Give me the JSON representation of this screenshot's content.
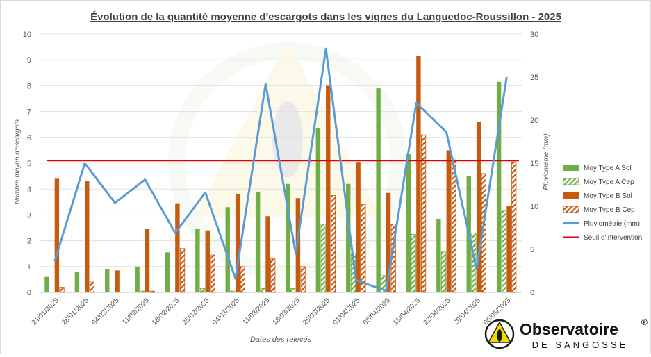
{
  "chart_data": {
    "type": "bar",
    "title": "Évolution de la quantité moyenne d'escargots dans les vignes du Languedoc-Roussillon - 2025",
    "xlabel": "Dates des relevés",
    "ylabel": "Nombre moyen d'escargots",
    "y2label": "Pluviométrie (mm)",
    "ylim": [
      0,
      10
    ],
    "y2lim": [
      0,
      30
    ],
    "yticks": [
      "0",
      "1",
      "2",
      "3",
      "4",
      "5",
      "6",
      "7",
      "8",
      "9",
      "10"
    ],
    "y2ticks": [
      "0",
      "5",
      "10",
      "15",
      "20",
      "25",
      "30"
    ],
    "categories": [
      "21/01/2025",
      "28/01/2025",
      "04/02/2025",
      "11/02/2025",
      "18/02/2025",
      "25/02/2025",
      "04/03/2025",
      "11/03/2025",
      "18/03/2025",
      "25/03/2025",
      "01/04/2025",
      "08/04/2025",
      "15/04/2025",
      "22/04/2025",
      "29/04/2025",
      "06/05/2025"
    ],
    "series": [
      {
        "name": "Moy Type A Sol",
        "kind": "bar",
        "pattern": "solid",
        "color": "#70ad47",
        "values": [
          0.6,
          0.8,
          0.9,
          1.0,
          1.55,
          2.45,
          3.3,
          3.9,
          4.2,
          6.35,
          4.2,
          7.9,
          5.35,
          2.85,
          4.5,
          8.15
        ]
      },
      {
        "name": "Moy Type A Cep",
        "kind": "bar",
        "pattern": "hatched",
        "color": "#70ad47",
        "values": [
          0,
          0,
          0,
          0.05,
          0,
          0.15,
          0.05,
          0.15,
          0.15,
          2.65,
          1.5,
          0.65,
          2.25,
          1.6,
          2.3,
          3.15
        ]
      },
      {
        "name": "Moy Type B Sol",
        "kind": "bar",
        "pattern": "solid",
        "color": "#c55a11",
        "values": [
          4.4,
          4.3,
          0.85,
          2.45,
          3.45,
          2.4,
          3.8,
          2.95,
          3.65,
          8.0,
          5.05,
          3.85,
          9.15,
          5.5,
          6.6,
          3.35
        ]
      },
      {
        "name": "Moy Type B Cep",
        "kind": "bar",
        "pattern": "hatched",
        "color": "#c55a11",
        "values": [
          0.2,
          0.4,
          0,
          0.05,
          1.7,
          1.45,
          1.0,
          1.3,
          1.0,
          3.75,
          3.4,
          2.65,
          6.1,
          5.2,
          4.6,
          5.05
        ]
      },
      {
        "name": "Pluviométrie (mm)",
        "kind": "line",
        "axis": "right",
        "color": "#5b9bd5",
        "values": [
          3.6,
          15.0,
          10.4,
          13.1,
          6.9,
          11.6,
          1.6,
          24.2,
          4.5,
          28.3,
          1.4,
          0.2,
          22.0,
          18.6,
          2.7,
          25.0
        ]
      },
      {
        "name": "Seuil d'intervention",
        "kind": "hline",
        "color": "#e00000",
        "value": 5.1
      }
    ],
    "grid": true,
    "legend_position": "right"
  },
  "logo": {
    "name": "Observatoire",
    "mark": "®",
    "subtitle": "DE SANGOSSE"
  }
}
